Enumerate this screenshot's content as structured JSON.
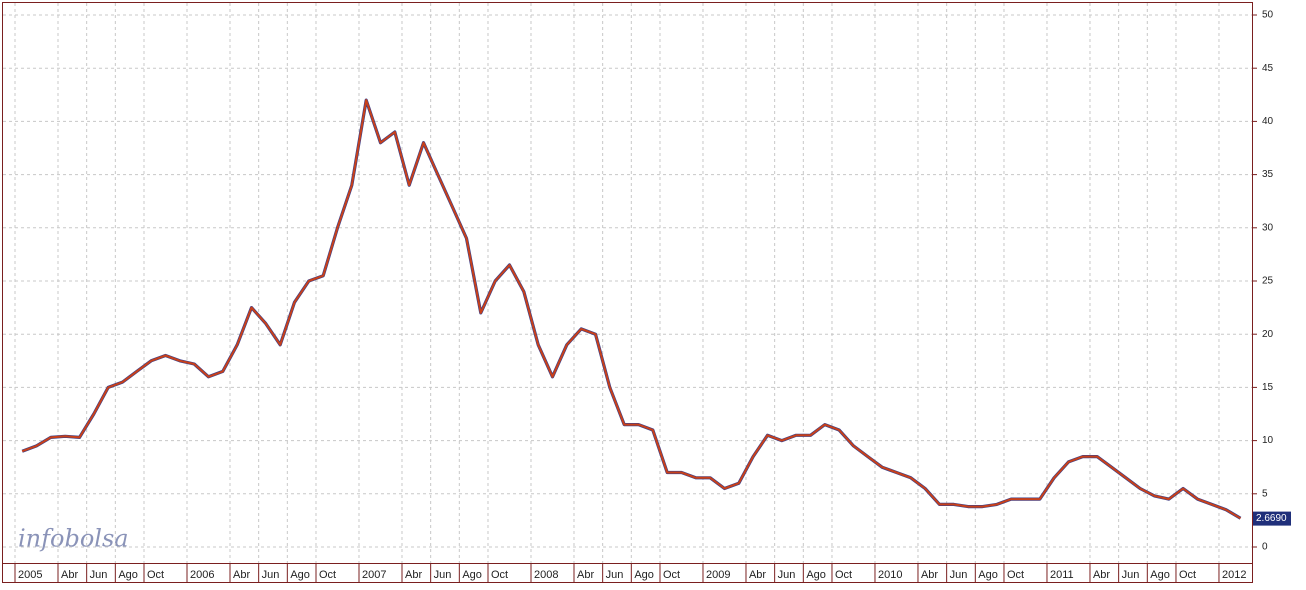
{
  "chart_data": {
    "type": "line",
    "logo": "infobolsa",
    "categories": [
      "2005",
      null,
      null,
      "Abr",
      null,
      "Jun",
      null,
      "Ago",
      null,
      "Oct",
      null,
      null,
      "2006",
      null,
      null,
      "Abr",
      null,
      "Jun",
      null,
      "Ago",
      null,
      "Oct",
      null,
      null,
      "2007",
      null,
      null,
      "Abr",
      null,
      "Jun",
      null,
      "Ago",
      null,
      "Oct",
      null,
      null,
      "2008",
      null,
      null,
      "Abr",
      null,
      "Jun",
      null,
      "Ago",
      null,
      "Oct",
      null,
      null,
      "2009",
      null,
      null,
      "Abr",
      null,
      "Jun",
      null,
      "Ago",
      null,
      "Oct",
      null,
      null,
      "2010",
      null,
      null,
      "Abr",
      null,
      "Jun",
      null,
      "Ago",
      null,
      "Oct",
      null,
      null,
      "2011",
      null,
      null,
      "Abr",
      null,
      "Jun",
      null,
      "Ago",
      null,
      "Oct",
      null,
      null,
      "2012",
      null
    ],
    "series": [
      {
        "color": "#c8401a",
        "values": [
          9,
          9.5,
          10.3,
          10.4,
          10.3,
          12.5,
          15,
          15.5,
          16.5,
          17.5,
          18,
          17.5,
          17.2,
          16,
          16.5,
          19,
          22.5,
          21,
          19,
          23,
          25,
          25.5,
          30,
          34,
          42,
          38,
          39,
          34,
          38,
          35,
          32,
          29,
          22,
          25,
          26.5,
          24,
          19,
          16,
          19,
          20.5,
          20,
          15,
          11.5,
          11.5,
          11,
          7,
          7,
          6.5,
          6.5,
          5.5,
          6,
          8.5,
          10.5,
          10,
          10.5,
          10.5,
          11.5,
          11,
          9.5,
          8.5,
          7.5,
          7,
          6.5,
          5.5,
          4,
          4,
          3.8,
          3.8,
          4,
          4.5,
          4.5,
          4.5,
          6.5,
          8,
          8.5,
          8.5,
          7.5,
          6.5,
          5.5,
          4.8,
          4.5,
          5.5,
          4.5,
          4,
          3.5,
          2.7
        ]
      }
    ],
    "last": {
      "value": 2.669,
      "label": "2.6690"
    },
    "ylim": [
      0,
      50
    ],
    "yticks": [
      0,
      5,
      10,
      15,
      20,
      25,
      30,
      35,
      40,
      45,
      50
    ],
    "grid": true
  }
}
